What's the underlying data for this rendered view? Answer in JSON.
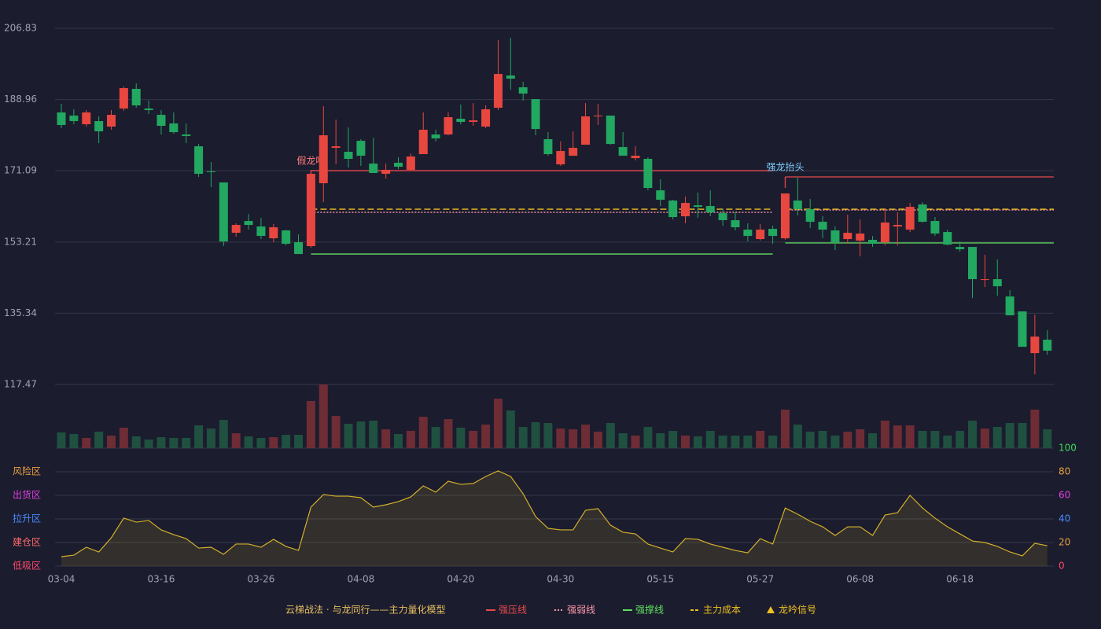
{
  "chart_data": {
    "type": "candlestick",
    "ylim": [
      117.47,
      206.83
    ],
    "yticks": [
      117.47,
      135.34,
      153.21,
      171.09,
      188.96,
      206.83
    ],
    "grid": true,
    "up_color": "#e8473f",
    "down_color": "#22a860",
    "volume_up_color": "#6e2c35",
    "volume_down_color": "#1f5040",
    "categories": [
      "03-04",
      null,
      null,
      null,
      null,
      null,
      null,
      null,
      "03-16",
      null,
      null,
      null,
      null,
      null,
      null,
      null,
      "03-26",
      null,
      null,
      null,
      null,
      null,
      null,
      null,
      "04-08",
      null,
      null,
      null,
      null,
      null,
      null,
      null,
      "04-20",
      null,
      null,
      null,
      null,
      null,
      null,
      null,
      "04-30",
      null,
      null,
      null,
      null,
      null,
      null,
      null,
      "05-15",
      null,
      null,
      null,
      null,
      null,
      null,
      null,
      "05-27",
      null,
      null,
      null,
      null,
      null,
      null,
      null,
      "06-08",
      null,
      null,
      null,
      null,
      null,
      null,
      null,
      "06-18",
      null,
      null,
      null,
      null,
      null,
      null,
      null
    ],
    "open": [
      185.72,
      184.93,
      182.76,
      183.55,
      182.17,
      186.7,
      191.64,
      186.7,
      185.12,
      182.96,
      180.19,
      177.23,
      170.92,
      168.16,
      155.53,
      158.49,
      157.11,
      154.15,
      156.12,
      153.16,
      152.18,
      167.96,
      176.84,
      175.85,
      178.61,
      172.89,
      170.33,
      173.09,
      171.31,
      175.26,
      180.19,
      180.19,
      184.14,
      183.35,
      182.17,
      186.9,
      194.99,
      192.03,
      189.07,
      179.01,
      172.69,
      174.86,
      177.63,
      184.73,
      184.93,
      177.04,
      174.27,
      174.08,
      166.18,
      163.61,
      159.67,
      162.43,
      162.24,
      160.46,
      158.69,
      156.32,
      153.95,
      156.52,
      154.15,
      163.61,
      161.45,
      158.29,
      156.12,
      153.95,
      153.56,
      153.76,
      153.16,
      157.11,
      156.32,
      162.63,
      158.49,
      155.73,
      151.98,
      151.98,
      143.69,
      143.89,
      139.55,
      135.8,
      125.34,
      128.7
    ],
    "high": [
      187.89,
      186.51,
      186.31,
      184.73,
      186.31,
      192.23,
      193.02,
      188.68,
      186.31,
      185.72,
      182.96,
      177.82,
      173.29,
      168.16,
      157.9,
      160.27,
      159.28,
      157.7,
      156.32,
      155.13,
      171.31,
      187.29,
      183.94,
      181.97,
      179.01,
      179.4,
      172.89,
      174.47,
      175.46,
      185.72,
      181.38,
      185.72,
      187.69,
      188.08,
      187.49,
      203.87,
      204.46,
      193.41,
      189.07,
      180.78,
      178.42,
      180.98,
      188.08,
      187.89,
      184.93,
      180.78,
      177.23,
      174.47,
      168.95,
      163.81,
      164.6,
      165.59,
      166.18,
      161.64,
      160.66,
      157.9,
      157.7,
      157.3,
      165.39,
      169.34,
      164.01,
      159.67,
      157.11,
      160.07,
      158.89,
      154.74,
      161.45,
      160.66,
      163.02,
      163.22,
      159.48,
      156.32,
      153.36,
      151.98,
      150.01,
      148.82,
      141.12,
      135.8,
      135.01,
      131.07
    ],
    "low": [
      181.77,
      182.76,
      182.17,
      178.02,
      181.38,
      186.11,
      186.9,
      185.32,
      180.19,
      180.39,
      178.02,
      169.54,
      166.97,
      152.18,
      154.54,
      156.32,
      153.95,
      153.16,
      152.37,
      150.2,
      151.78,
      163.22,
      172.69,
      171.91,
      172.3,
      170.53,
      169.14,
      171.51,
      171.31,
      175.26,
      178.42,
      179.99,
      182.76,
      182.36,
      181.77,
      186.31,
      191.44,
      188.68,
      179.99,
      174.86,
      172.3,
      174.86,
      177.63,
      182.56,
      177.63,
      174.86,
      173.68,
      166.18,
      162.24,
      158.89,
      157.9,
      159.28,
      159.67,
      157.3,
      156.12,
      153.36,
      153.56,
      152.77,
      153.76,
      159.87,
      156.71,
      154.15,
      151.19,
      152.77,
      149.61,
      151.98,
      152.37,
      152.37,
      155.73,
      158.09,
      154.74,
      152.37,
      150.79,
      139.15,
      141.91,
      139.75,
      134.82,
      126.92,
      120.02,
      124.95
    ],
    "close": [
      182.56,
      183.55,
      185.72,
      180.98,
      185.12,
      191.83,
      187.49,
      186.31,
      182.36,
      180.78,
      179.8,
      170.33,
      170.72,
      153.36,
      157.5,
      157.5,
      154.74,
      156.91,
      152.77,
      150.2,
      170.33,
      179.99,
      177.23,
      174.08,
      174.86,
      170.53,
      171.31,
      172.1,
      174.67,
      181.38,
      179.2,
      184.53,
      183.35,
      183.74,
      186.51,
      195.38,
      194.2,
      190.45,
      181.57,
      175.26,
      176.05,
      176.84,
      184.73,
      184.93,
      177.82,
      174.86,
      174.86,
      166.78,
      163.81,
      159.48,
      163.02,
      162.04,
      160.66,
      158.69,
      156.91,
      154.74,
      156.32,
      154.74,
      165.39,
      161.45,
      158.29,
      156.32,
      153.16,
      155.53,
      155.33,
      152.77,
      158.09,
      157.5,
      162.04,
      158.29,
      155.33,
      152.57,
      151.39,
      143.89,
      143.89,
      142.11,
      134.82,
      126.92,
      129.49,
      125.94
    ],
    "volume": [
      20,
      18,
      13,
      21,
      16,
      26,
      15,
      11,
      14,
      13,
      13,
      29,
      25,
      36,
      19,
      15,
      13,
      14,
      17,
      17,
      60,
      81,
      41,
      31,
      34,
      35,
      24,
      18,
      22,
      40,
      27,
      37,
      26,
      22,
      30,
      63,
      48,
      27,
      33,
      32,
      25,
      24,
      30,
      21,
      32,
      19,
      16,
      27,
      19,
      22,
      16,
      15,
      22,
      16,
      16,
      16,
      22,
      16,
      49,
      30,
      21,
      22,
      16,
      21,
      24,
      19,
      35,
      29,
      29,
      22,
      22,
      16,
      22,
      35,
      25,
      27,
      32,
      32,
      49,
      24
    ],
    "overlays": [
      {
        "label": "假龙吟",
        "label_color": "#ff7b7b",
        "from": 20,
        "to": 57,
        "pressure": 171.11,
        "weak": 160.66,
        "support": 150.2,
        "cost": 161.45
      },
      {
        "label": "强龙抬头",
        "label_color": "#7ad0ff",
        "from": 58,
        "to": 79,
        "pressure": 169.54,
        "weak": 161.25,
        "support": 152.97,
        "cost": 161.45
      }
    ],
    "indicator": {
      "color": "#d4b02a",
      "ylim": [
        0,
        100
      ],
      "yticks": [
        0,
        20,
        40,
        60,
        80,
        100
      ],
      "ytick_colors": [
        "#ff4a6a",
        "#e8a040",
        "#4a8aff",
        "#e040e0",
        "#e8a040",
        "#3ddc5a"
      ],
      "zones": [
        {
          "label": "低吸区",
          "value": 0,
          "color": "#ff4a6a"
        },
        {
          "label": "建仓区",
          "value": 20,
          "color": "#ff6a6a"
        },
        {
          "label": "拉升区",
          "value": 40,
          "color": "#4a8aff"
        },
        {
          "label": "出货区",
          "value": 60,
          "color": "#e040e0"
        },
        {
          "label": "风险区",
          "value": 80,
          "color": "#e8a040"
        }
      ],
      "values": [
        8,
        9.3,
        16,
        12,
        24,
        40.7,
        37.3,
        38.7,
        30.7,
        26.7,
        23.3,
        15.3,
        16,
        10,
        18.7,
        18.7,
        16,
        22.7,
        16.7,
        13.3,
        50,
        60.7,
        59.3,
        59.3,
        58,
        50,
        52,
        54.7,
        58.7,
        68,
        62.7,
        72,
        69.3,
        70,
        76,
        80.7,
        76,
        61.3,
        42,
        32,
        30.7,
        30.7,
        47.3,
        48.7,
        34.7,
        28.7,
        27.3,
        18.7,
        15.3,
        12,
        23.3,
        22.7,
        18.7,
        16,
        13.3,
        11.3,
        23.3,
        18.7,
        49.3,
        44,
        38,
        33.3,
        26,
        33.3,
        33.3,
        26,
        43.3,
        45.3,
        60,
        49.3,
        40.7,
        33.3,
        27.3,
        21.3,
        20,
        16.7,
        12,
        8.7,
        19.3,
        17.3
      ]
    },
    "legend_title": "云梯战法 · 与龙同行——主力量化模型",
    "legend": [
      {
        "name": "强压线",
        "color": "#e84a4a",
        "style": "solid"
      },
      {
        "name": "强弱线",
        "color": "#ff9aaa",
        "style": "dotted"
      },
      {
        "name": "强撑线",
        "color": "#5fe05f",
        "style": "solid"
      },
      {
        "name": "主力成本",
        "color": "#f0c020",
        "style": "dashed"
      },
      {
        "name": "龙吟信号",
        "color": "#f0c020",
        "style": "triangle"
      }
    ]
  }
}
